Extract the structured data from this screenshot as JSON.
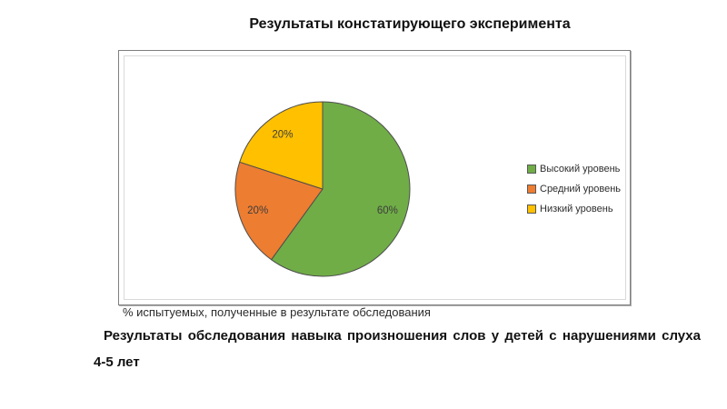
{
  "slide": {
    "title": "Результаты констатирующего эксперимента",
    "caption": "% испытуемых, полученные в результате обследования",
    "footer_line1": "Результаты обследования навыка произношения слов у детей с нарушениями слуха",
    "footer_line2": "4-5 лет"
  },
  "chart_data": {
    "type": "pie",
    "title": "Результаты констатирующего эксперимента",
    "categories": [
      "Высокий уровень",
      "Средний уровень",
      "Низкий уровень"
    ],
    "values": [
      60,
      20,
      20
    ],
    "labels": [
      "60%",
      "20%",
      "20%"
    ],
    "colors": [
      "#70ad47",
      "#ed7d31",
      "#ffc000"
    ],
    "slice_outline_color": "#4d4d4d",
    "legend_position": "right",
    "start_angle_deg": 0,
    "direction": "clockwise",
    "unit": "%"
  },
  "legend": {
    "items": [
      {
        "label": "Высокий уровень",
        "color": "#70ad47"
      },
      {
        "label": "Средний уровень",
        "color": "#ed7d31"
      },
      {
        "label": "Низкий уровень",
        "color": "#ffc000"
      }
    ]
  }
}
